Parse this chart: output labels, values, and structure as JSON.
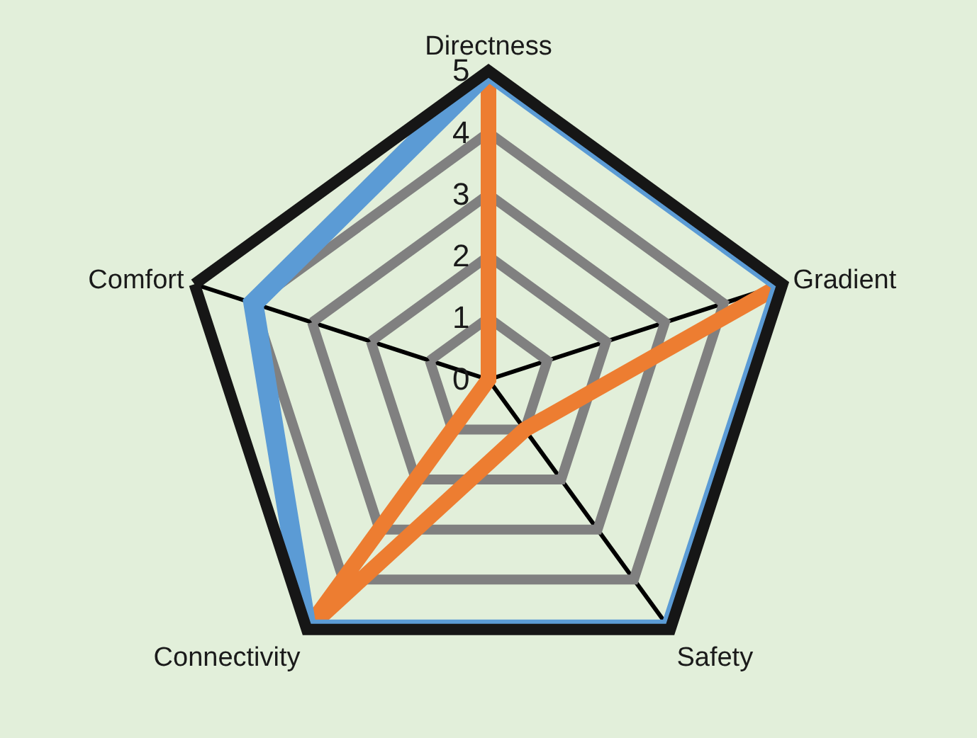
{
  "chart_data": {
    "type": "radar",
    "categories": [
      "Directness",
      "Gradient",
      "Safety",
      "Connectivity",
      "Comfort"
    ],
    "ylim": [
      0,
      5
    ],
    "yticks": [
      0,
      1,
      2,
      3,
      4,
      5
    ],
    "grid": true,
    "marker": "none",
    "series": [
      {
        "color": "#ed7d31",
        "values": [
          5,
          5,
          1,
          5,
          0
        ]
      },
      {
        "color": "#5b9bd5",
        "values": [
          5,
          5,
          5,
          5,
          4
        ]
      }
    ]
  }
}
